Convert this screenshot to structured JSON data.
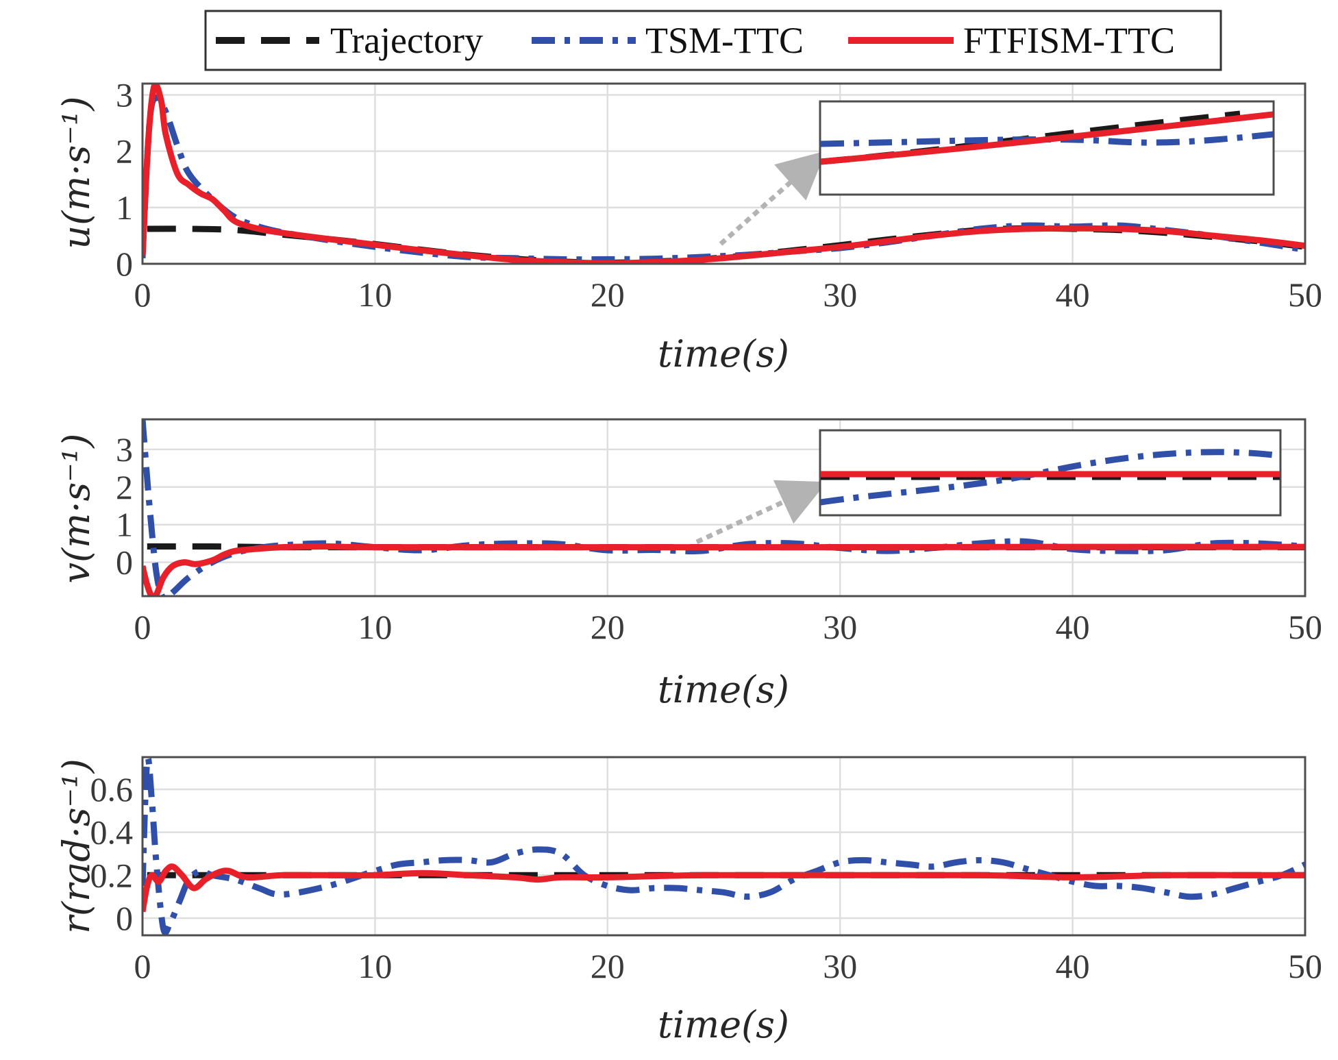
{
  "chart_data": [
    {
      "type": "line",
      "xlabel": "time(s)",
      "ylabel": "u(m·s⁻¹)",
      "xlim": [
        0,
        50
      ],
      "ylim": [
        0,
        3.2
      ],
      "xticks": [
        0,
        10,
        20,
        30,
        40,
        50
      ],
      "xtick_labels": [
        "0",
        "10",
        "20",
        "30",
        "40",
        "50"
      ],
      "yticks": [
        0,
        1,
        2,
        3
      ],
      "ytick_labels": [
        "0",
        "1",
        "2",
        "3"
      ],
      "grid": true,
      "inset": "zoomed view of all series, arrow from t≈25",
      "series": [
        {
          "name": "Trajectory",
          "x": [
            0.2,
            2,
            4,
            6,
            8,
            10,
            12,
            14,
            16,
            18,
            20,
            22,
            24,
            26,
            28,
            30,
            32,
            34,
            36,
            38,
            40,
            42,
            44,
            46,
            48,
            50
          ],
          "y": [
            0.62,
            0.62,
            0.6,
            0.52,
            0.44,
            0.35,
            0.25,
            0.16,
            0.09,
            0.04,
            0.02,
            0.04,
            0.08,
            0.15,
            0.24,
            0.33,
            0.43,
            0.52,
            0.6,
            0.63,
            0.62,
            0.6,
            0.55,
            0.48,
            0.4,
            0.3
          ]
        },
        {
          "name": "TSM-TTC",
          "x": [
            0,
            0.3,
            0.6,
            1,
            1.5,
            2,
            3,
            4,
            5,
            6,
            8,
            10,
            12,
            14,
            16,
            18,
            20,
            22,
            24,
            26,
            28,
            30,
            32,
            34,
            36,
            38,
            40,
            42,
            44,
            46,
            48,
            50
          ],
          "y": [
            0.1,
            2.5,
            2.95,
            2.7,
            2.1,
            1.6,
            1.15,
            0.82,
            0.66,
            0.56,
            0.42,
            0.3,
            0.2,
            0.12,
            0.1,
            0.08,
            0.08,
            0.09,
            0.12,
            0.16,
            0.22,
            0.28,
            0.38,
            0.5,
            0.62,
            0.68,
            0.66,
            0.68,
            0.6,
            0.5,
            0.38,
            0.25
          ]
        },
        {
          "name": "FTFISM-TTC",
          "x": [
            0,
            0.25,
            0.5,
            0.8,
            1,
            1.5,
            2,
            2.5,
            3,
            3.5,
            4,
            5,
            6,
            8,
            10,
            12,
            14,
            16,
            18,
            20,
            22,
            24,
            26,
            28,
            30,
            32,
            34,
            36,
            38,
            40,
            42,
            44,
            46,
            48,
            50
          ],
          "y": [
            0.15,
            2.2,
            3.15,
            2.9,
            2.3,
            1.6,
            1.4,
            1.25,
            1.15,
            0.95,
            0.75,
            0.62,
            0.55,
            0.44,
            0.34,
            0.24,
            0.15,
            0.07,
            0.03,
            0.01,
            0.03,
            0.07,
            0.14,
            0.22,
            0.3,
            0.4,
            0.5,
            0.58,
            0.62,
            0.63,
            0.62,
            0.58,
            0.5,
            0.42,
            0.32
          ]
        }
      ]
    },
    {
      "type": "line",
      "xlabel": "time(s)",
      "ylabel": "v(m·s⁻¹)",
      "xlim": [
        0,
        50
      ],
      "ylim": [
        -0.9,
        3.8
      ],
      "xticks": [
        0,
        10,
        20,
        30,
        40,
        50
      ],
      "xtick_labels": [
        "0",
        "10",
        "20",
        "30",
        "40",
        "50"
      ],
      "yticks": [
        0,
        1,
        2,
        3
      ],
      "ytick_labels": [
        "0",
        "1",
        "2",
        "3"
      ],
      "grid": true,
      "inset": "zoomed view of all series, arrow from t≈24",
      "series": [
        {
          "name": "Trajectory",
          "x": [
            0.2,
            3,
            6,
            10,
            20,
            30,
            40,
            50
          ],
          "y": [
            0.42,
            0.42,
            0.4,
            0.4,
            0.4,
            0.4,
            0.4,
            0.4
          ]
        },
        {
          "name": "TSM-TTC",
          "x": [
            0,
            0.3,
            0.6,
            0.9,
            1.3,
            2,
            3,
            4,
            5,
            6,
            8,
            10,
            12,
            14,
            16,
            18,
            20,
            22,
            24,
            26,
            28,
            30,
            32,
            34,
            36,
            38,
            40,
            42,
            44,
            46,
            48,
            50
          ],
          "y": [
            3.8,
            1.5,
            -0.3,
            -0.95,
            -0.8,
            -0.4,
            0.0,
            0.25,
            0.38,
            0.45,
            0.5,
            0.4,
            0.32,
            0.45,
            0.5,
            0.48,
            0.32,
            0.33,
            0.3,
            0.48,
            0.5,
            0.38,
            0.3,
            0.38,
            0.5,
            0.55,
            0.35,
            0.3,
            0.32,
            0.5,
            0.5,
            0.42
          ]
        },
        {
          "name": "FTFISM-TTC",
          "x": [
            0,
            0.2,
            0.4,
            0.6,
            0.9,
            1.3,
            1.8,
            2.3,
            3,
            3.5,
            4,
            5,
            6,
            8,
            10,
            20,
            30,
            40,
            50
          ],
          "y": [
            -0.1,
            -0.6,
            -0.9,
            -0.85,
            -0.4,
            -0.1,
            0.0,
            -0.05,
            0.05,
            0.2,
            0.3,
            0.36,
            0.4,
            0.42,
            0.4,
            0.4,
            0.4,
            0.41,
            0.41
          ]
        }
      ]
    },
    {
      "type": "line",
      "xlabel": "time(s)",
      "ylabel": "r(rad·s⁻¹)",
      "xlim": [
        0,
        50
      ],
      "ylim": [
        -0.08,
        0.75
      ],
      "xticks": [
        0,
        10,
        20,
        30,
        40,
        50
      ],
      "xtick_labels": [
        "0",
        "10",
        "20",
        "30",
        "40",
        "50"
      ],
      "yticks": [
        0,
        0.2,
        0.4,
        0.6
      ],
      "ytick_labels": [
        "0",
        "0.2",
        "0.4",
        "0.6"
      ],
      "grid": true,
      "series": [
        {
          "name": "Trajectory",
          "x": [
            0.2,
            10,
            20,
            30,
            40,
            50
          ],
          "y": [
            0.2,
            0.2,
            0.2,
            0.2,
            0.2,
            0.2
          ]
        },
        {
          "name": "TSM-TTC",
          "x": [
            0,
            0.2,
            0.4,
            0.6,
            0.9,
            1.2,
            1.6,
            2,
            2.5,
            3,
            4,
            5,
            6,
            8,
            10,
            11,
            12,
            13,
            14,
            15,
            16,
            17,
            18,
            19,
            20,
            21,
            22,
            23,
            24,
            25,
            26,
            27,
            28,
            29,
            30,
            31,
            32,
            33,
            34,
            35,
            36,
            37,
            38,
            39,
            40,
            41,
            42,
            43,
            44,
            45,
            46,
            47,
            48,
            49,
            50
          ],
          "y": [
            0.15,
            0.73,
            0.55,
            0.25,
            -0.05,
            -0.02,
            0.08,
            0.18,
            0.22,
            0.2,
            0.18,
            0.14,
            0.11,
            0.15,
            0.22,
            0.25,
            0.26,
            0.27,
            0.27,
            0.26,
            0.3,
            0.32,
            0.3,
            0.2,
            0.15,
            0.13,
            0.14,
            0.14,
            0.13,
            0.12,
            0.1,
            0.12,
            0.18,
            0.22,
            0.26,
            0.27,
            0.26,
            0.25,
            0.24,
            0.26,
            0.27,
            0.26,
            0.23,
            0.2,
            0.17,
            0.15,
            0.15,
            0.14,
            0.12,
            0.1,
            0.11,
            0.14,
            0.17,
            0.2,
            0.25
          ]
        },
        {
          "name": "FTFISM-TTC",
          "x": [
            0,
            0.2,
            0.4,
            0.7,
            1,
            1.3,
            1.7,
            2.2,
            2.7,
            3.2,
            3.7,
            4.5,
            6,
            8,
            10,
            12,
            14,
            16,
            17,
            18,
            20,
            24,
            30,
            36,
            40,
            44,
            48,
            50
          ],
          "y": [
            0.03,
            0.15,
            0.2,
            0.17,
            0.22,
            0.24,
            0.2,
            0.14,
            0.18,
            0.21,
            0.22,
            0.19,
            0.2,
            0.2,
            0.2,
            0.21,
            0.2,
            0.19,
            0.18,
            0.19,
            0.19,
            0.2,
            0.2,
            0.2,
            0.19,
            0.2,
            0.2,
            0.2
          ]
        }
      ]
    }
  ],
  "legend": [
    "Trajectory",
    "TSM-TTC",
    "FTFISM-TTC"
  ],
  "colors": {
    "Trajectory": "#1a1a1a",
    "TSM-TTC": "#2f4fa8",
    "FTFISM-TTC": "#e8202a",
    "arrow": "#b3b3b3"
  }
}
